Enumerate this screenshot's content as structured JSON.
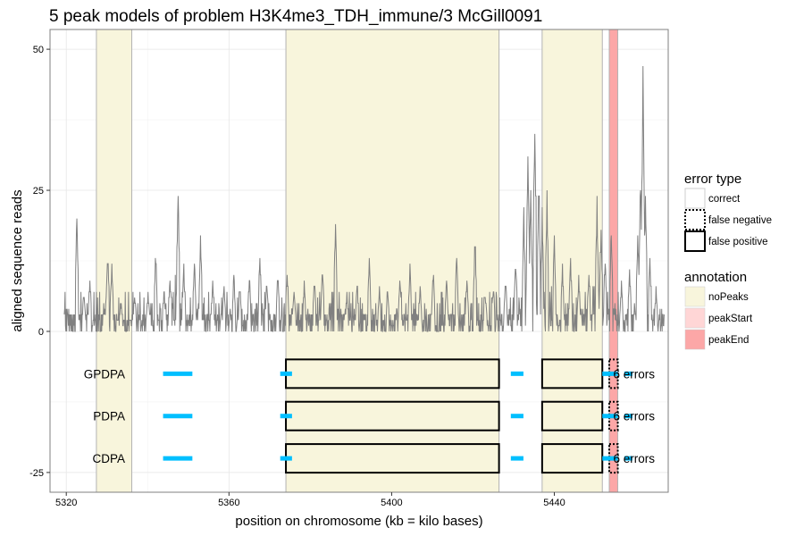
{
  "chart_data": {
    "type": "line",
    "title": "5 peak models of problem H3K4me3_TDH_immune/3 McGill0091",
    "xlabel": "position on chromosome (kb = kilo bases)",
    "ylabel": "aligned sequence reads",
    "xlim": [
      5316.0,
      5468.0
    ],
    "ylim": [
      -28.5,
      53.5
    ],
    "x_ticks": [
      5320,
      5360,
      5400,
      5440
    ],
    "y_ticks": [
      -25,
      0,
      25,
      50
    ],
    "grid": true,
    "colors": {
      "signal": "#808080",
      "peak_segment": "#00bfff",
      "noPeaks": "#f8f5dc",
      "peakStart": "#ffd6d6",
      "peakEnd": "#fca7a7",
      "error_box": "#000000"
    },
    "annotation_regions": [
      {
        "type": "noPeaks",
        "x0": 5327.4,
        "x1": 5336.1
      },
      {
        "type": "noPeaks",
        "x0": 5374.0,
        "x1": 5426.4
      },
      {
        "type": "noPeaks",
        "x0": 5437.0,
        "x1": 5451.8
      },
      {
        "type": "peakEnd",
        "x0": 5453.5,
        "x1": 5455.6
      }
    ],
    "signal_x_range": [
      5319.5,
      5467.0
    ],
    "signal_spikes": [
      {
        "x": 5322.6,
        "y": 21
      },
      {
        "x": 5324.3,
        "y": 7
      },
      {
        "x": 5325.8,
        "y": 10
      },
      {
        "x": 5330.2,
        "y": 16
      },
      {
        "x": 5331.2,
        "y": 13
      },
      {
        "x": 5333.5,
        "y": 6
      },
      {
        "x": 5336.8,
        "y": 7
      },
      {
        "x": 5340.1,
        "y": 8
      },
      {
        "x": 5342.0,
        "y": 15
      },
      {
        "x": 5344.0,
        "y": 8
      },
      {
        "x": 5345.5,
        "y": 11
      },
      {
        "x": 5347.5,
        "y": 28
      },
      {
        "x": 5348.9,
        "y": 13
      },
      {
        "x": 5351.5,
        "y": 14
      },
      {
        "x": 5353.0,
        "y": 18
      },
      {
        "x": 5356.0,
        "y": 9
      },
      {
        "x": 5358.8,
        "y": 9
      },
      {
        "x": 5361.2,
        "y": 11
      },
      {
        "x": 5362.7,
        "y": 9
      },
      {
        "x": 5365.0,
        "y": 11
      },
      {
        "x": 5367.6,
        "y": 15
      },
      {
        "x": 5369.3,
        "y": 10
      },
      {
        "x": 5372.0,
        "y": 11
      },
      {
        "x": 5374.3,
        "y": 12
      },
      {
        "x": 5376.0,
        "y": 8
      },
      {
        "x": 5378.5,
        "y": 9
      },
      {
        "x": 5381.0,
        "y": 10
      },
      {
        "x": 5383.0,
        "y": 12
      },
      {
        "x": 5386.2,
        "y": 21
      },
      {
        "x": 5389.0,
        "y": 8
      },
      {
        "x": 5391.5,
        "y": 10
      },
      {
        "x": 5394.5,
        "y": 13
      },
      {
        "x": 5397.0,
        "y": 8
      },
      {
        "x": 5399.0,
        "y": 8
      },
      {
        "x": 5402.0,
        "y": 10
      },
      {
        "x": 5404.5,
        "y": 12
      },
      {
        "x": 5407.0,
        "y": 8
      },
      {
        "x": 5410.2,
        "y": 12
      },
      {
        "x": 5413.5,
        "y": 10
      },
      {
        "x": 5416.0,
        "y": 15
      },
      {
        "x": 5418.5,
        "y": 10
      },
      {
        "x": 5420.5,
        "y": 18
      },
      {
        "x": 5423.0,
        "y": 8
      },
      {
        "x": 5425.0,
        "y": 9
      },
      {
        "x": 5428.0,
        "y": 10
      },
      {
        "x": 5430.5,
        "y": 14
      },
      {
        "x": 5432.5,
        "y": 22
      },
      {
        "x": 5433.5,
        "y": 36
      },
      {
        "x": 5434.2,
        "y": 28
      },
      {
        "x": 5435.2,
        "y": 44
      },
      {
        "x": 5436.2,
        "y": 30
      },
      {
        "x": 5437.0,
        "y": 22
      },
      {
        "x": 5438.2,
        "y": 25
      },
      {
        "x": 5440.0,
        "y": 18
      },
      {
        "x": 5442.0,
        "y": 12
      },
      {
        "x": 5444.0,
        "y": 14
      },
      {
        "x": 5446.0,
        "y": 10
      },
      {
        "x": 5448.5,
        "y": 12
      },
      {
        "x": 5450.5,
        "y": 24
      },
      {
        "x": 5451.5,
        "y": 20
      },
      {
        "x": 5452.5,
        "y": 14
      },
      {
        "x": 5454.0,
        "y": 21
      },
      {
        "x": 5456.5,
        "y": 9
      },
      {
        "x": 5458.5,
        "y": 12
      },
      {
        "x": 5460.5,
        "y": 20
      },
      {
        "x": 5461.2,
        "y": 30
      },
      {
        "x": 5461.8,
        "y": 50
      },
      {
        "x": 5462.4,
        "y": 27
      },
      {
        "x": 5463.5,
        "y": 15
      },
      {
        "x": 5465.0,
        "y": 8
      }
    ],
    "models": [
      {
        "name": "GPDPA",
        "y": -7.5,
        "errors_label": "6 errors",
        "segments": [
          [
            5343.8,
            5351.0
          ],
          [
            5372.6,
            5375.5
          ],
          [
            5429.3,
            5432.4
          ],
          [
            5451.8,
            5455.6
          ],
          [
            5457.2,
            5459.2
          ]
        ],
        "false_positive_boxes": [
          [
            5374.0,
            5426.4
          ],
          [
            5437.0,
            5451.8
          ]
        ],
        "false_negative_boxes": [
          [
            5453.5,
            5455.6
          ]
        ]
      },
      {
        "name": "PDPA",
        "y": -15,
        "errors_label": "6 errors",
        "segments": [
          [
            5343.8,
            5351.0
          ],
          [
            5372.6,
            5375.5
          ],
          [
            5429.3,
            5432.4
          ],
          [
            5451.8,
            5455.6
          ],
          [
            5457.2,
            5459.2
          ]
        ],
        "false_positive_boxes": [
          [
            5374.0,
            5426.4
          ],
          [
            5437.0,
            5451.8
          ]
        ],
        "false_negative_boxes": [
          [
            5453.5,
            5455.6
          ]
        ]
      },
      {
        "name": "CDPA",
        "y": -22.5,
        "errors_label": "6 errors",
        "segments": [
          [
            5343.8,
            5351.0
          ],
          [
            5372.6,
            5375.5
          ],
          [
            5429.3,
            5432.4
          ],
          [
            5451.8,
            5455.6
          ],
          [
            5457.2,
            5459.2
          ]
        ],
        "false_positive_boxes": [
          [
            5374.0,
            5426.4
          ],
          [
            5437.0,
            5451.8
          ]
        ],
        "false_negative_boxes": [
          [
            5453.5,
            5455.6
          ]
        ]
      }
    ],
    "legends": [
      {
        "title": "error type",
        "entries": [
          {
            "label": "correct",
            "style": "correct"
          },
          {
            "label": "false negative",
            "style": "false_negative"
          },
          {
            "label": "false positive",
            "style": "false_positive"
          }
        ]
      },
      {
        "title": "annotation",
        "entries": [
          {
            "label": "noPeaks",
            "style": "noPeaks"
          },
          {
            "label": "peakStart",
            "style": "peakStart"
          },
          {
            "label": "peakEnd",
            "style": "peakEnd"
          }
        ]
      }
    ],
    "legend_position": "right"
  }
}
